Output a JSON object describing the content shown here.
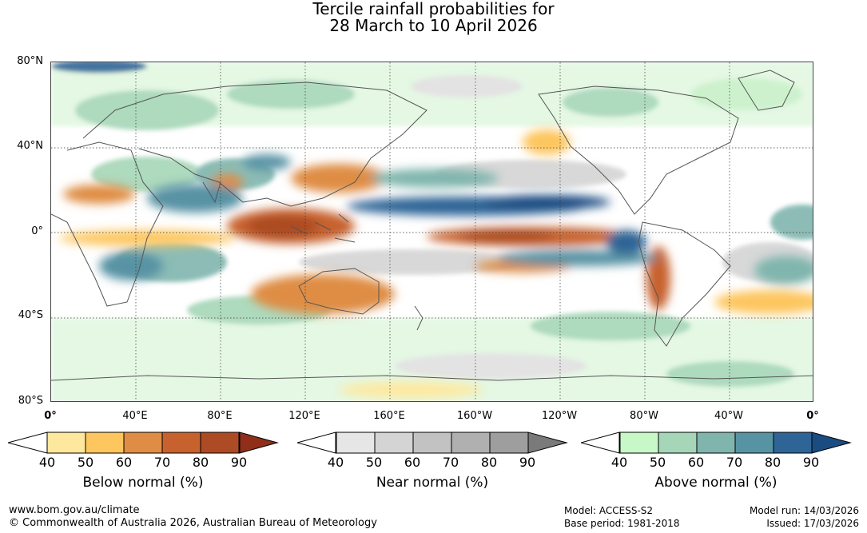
{
  "title": {
    "line1": "Tercile rainfall probabilities for",
    "line2": "28 March to 10 April 2026"
  },
  "lat_labels": [
    "80°N",
    "40°N",
    "0°",
    "40°S",
    "80°S"
  ],
  "lon_labels": [
    "0°",
    "40°E",
    "80°E",
    "120°E",
    "160°E",
    "160°W",
    "120°W",
    "80°W",
    "40°W",
    "0°"
  ],
  "colorbars": [
    {
      "name": "below",
      "title": "Below normal (%)",
      "ticks": [
        "40",
        "50",
        "60",
        "70",
        "80",
        "90"
      ],
      "colors": [
        "#ffffff",
        "#fee89e",
        "#fdc65e",
        "#df8d45",
        "#c7622f",
        "#ac4b24",
        "#8f2f1a"
      ]
    },
    {
      "name": "near",
      "title": "Near normal (%)",
      "ticks": [
        "40",
        "50",
        "60",
        "70",
        "80",
        "90"
      ],
      "colors": [
        "#ffffff",
        "#e6e6e6",
        "#d4d4d4",
        "#c2c2c2",
        "#b0b0b0",
        "#9e9e9e",
        "#7a7a7a"
      ]
    },
    {
      "name": "above",
      "title": "Above normal (%)",
      "ticks": [
        "40",
        "50",
        "60",
        "70",
        "80",
        "90"
      ],
      "colors": [
        "#ffffff",
        "#c8f7c8",
        "#a5d6b7",
        "#7fb5ad",
        "#5893a4",
        "#2f6596",
        "#1a4c82"
      ]
    }
  ],
  "footer": {
    "url": "www.bom.gov.au/climate",
    "copyright": "© Commonwealth of Australia 2026, Australian Bureau of Meteorology",
    "model": "Model: ACCESS-S2",
    "base_period": "Base period: 1981-2018",
    "model_run": "Model run: 14/03/2026",
    "issued": "Issued: 17/03/2026"
  }
}
